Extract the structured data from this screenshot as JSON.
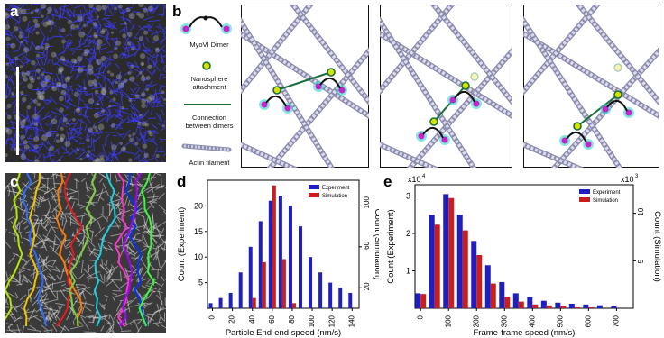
{
  "panels": {
    "a": "a",
    "b": "b",
    "c": "c",
    "d": "d",
    "e": "e"
  },
  "legend_b": {
    "dimer": "MyoVI Dimer",
    "nanosphere": "Nanosphere attachment",
    "connection": "Connection between dimers",
    "actin": "Actin filament"
  },
  "colors": {
    "experiment": "#1f1fbf",
    "simulation": "#c81e1e",
    "actin": "#b9b9d2",
    "connection": "#1a6e3a",
    "nanosphere": "#d8e200",
    "dimer_head": "#c026c8"
  },
  "chart_data": [
    {
      "type": "bar",
      "panel": "d",
      "xlabel": "Particle End-end speed (nm/s)",
      "ylabel_left": "Count (Experiment)",
      "ylabel_right": "Count (Simulation)",
      "x_ticks": [
        "0",
        "20",
        "40",
        "60",
        "80",
        "100",
        "120",
        "140"
      ],
      "y_left_ticks": [
        "5",
        "10",
        "15",
        "20"
      ],
      "y_right_ticks": [
        "20",
        "60",
        "100"
      ],
      "legend": [
        "Experiment",
        "Simulation"
      ],
      "ylim_left": [
        0,
        25
      ],
      "ylim_right": [
        0,
        125
      ],
      "series": [
        {
          "name": "Experiment",
          "x": [
            0,
            10,
            20,
            30,
            40,
            50,
            60,
            70,
            80,
            90,
            100,
            110,
            120,
            130,
            140
          ],
          "values": [
            1,
            2,
            3,
            7,
            12,
            17,
            21,
            22,
            20,
            16,
            10,
            7,
            5,
            4,
            3
          ]
        },
        {
          "name": "Simulation",
          "x": [
            0,
            10,
            20,
            30,
            40,
            50,
            60,
            70,
            80,
            90,
            100,
            110,
            120,
            130,
            140
          ],
          "values": [
            0,
            0,
            0,
            0,
            10,
            45,
            120,
            48,
            5,
            0,
            0,
            0,
            0,
            0,
            0
          ]
        }
      ]
    },
    {
      "type": "bar",
      "panel": "e",
      "xlabel": "Frame-frame speed (nm/s)",
      "ylabel_left": "Count (Experiment)",
      "ylabel_right": "Count (Simulation)",
      "x_ticks": [
        "0",
        "100",
        "200",
        "300",
        "400",
        "500",
        "600",
        "700"
      ],
      "y_left_ticks": [
        "1",
        "2",
        "3"
      ],
      "y_right_ticks": [
        "5",
        "10"
      ],
      "left_multiplier": "x10",
      "left_exponent": "4",
      "right_multiplier": "x10",
      "right_exponent": "3",
      "legend": [
        "Experiment",
        "Simulation"
      ],
      "ylim_left": [
        0,
        3.3
      ],
      "ylim_right": [
        0,
        13
      ],
      "series": [
        {
          "name": "Experiment",
          "x": [
            0,
            50,
            100,
            150,
            200,
            250,
            300,
            350,
            400,
            450,
            500,
            550,
            600,
            650,
            700
          ],
          "values": [
            0.4,
            2.5,
            3.05,
            2.5,
            1.8,
            1.15,
            0.7,
            0.4,
            0.3,
            0.2,
            0.15,
            0.12,
            0.1,
            0.08,
            0.05
          ]
        },
        {
          "name": "Simulation",
          "x": [
            0,
            50,
            100,
            150,
            200,
            250,
            300,
            350,
            400,
            450,
            500,
            550,
            600,
            650,
            700
          ],
          "values": [
            1.5,
            8.8,
            11.6,
            8.2,
            5.6,
            2.6,
            1.2,
            0.7,
            0.4,
            0.3,
            0.2,
            0.1,
            0.1,
            0,
            0
          ]
        }
      ]
    }
  ]
}
